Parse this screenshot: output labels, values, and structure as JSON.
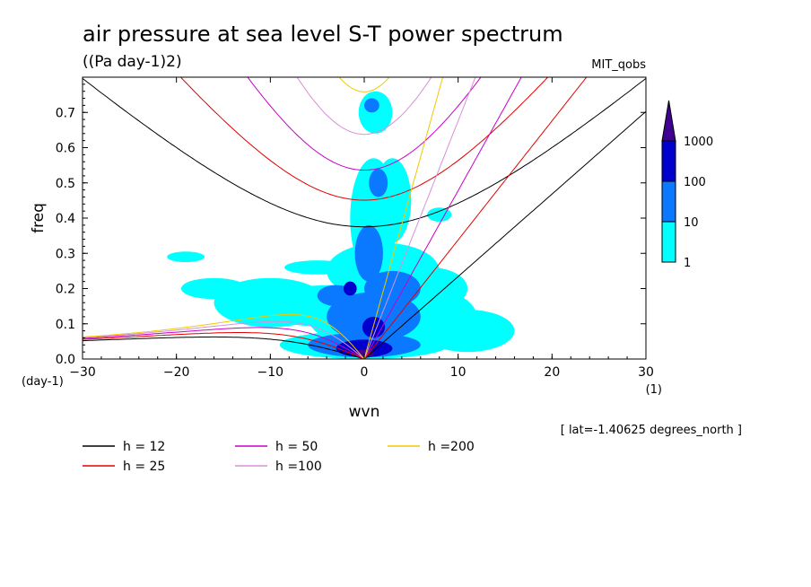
{
  "chart_data": {
    "type": "heatmap",
    "title": "air pressure at sea level S-T power spectrum",
    "units": "((Pa day-1)2)",
    "source": "MIT_qobs",
    "xlabel": "wvn",
    "ylabel": "freq",
    "x_unit": "(1)",
    "y_unit": "(day-1)",
    "xlim": [
      -30,
      30
    ],
    "ylim": [
      0,
      0.8
    ],
    "x_ticks": [
      "−30",
      "−20",
      "−10",
      "0",
      "10",
      "20",
      "30"
    ],
    "y_ticks": [
      "0.0",
      "0.1",
      "0.2",
      "0.3",
      "0.4",
      "0.5",
      "0.6",
      "0.7"
    ],
    "annotation": "[ lat=-1.40625 degrees_north ]",
    "colorbar": {
      "levels": [
        "1",
        "10",
        "100",
        "1000"
      ],
      "colors": [
        "#00ffff",
        "#0a78ff",
        "#0000cc",
        "#400090"
      ]
    },
    "dispersion_curves": [
      {
        "label": "h = 12",
        "h": 12,
        "color": "#000000"
      },
      {
        "label": "h = 25",
        "h": 25,
        "color": "#e00000"
      },
      {
        "label": "h = 50",
        "h": 50,
        "color": "#c800c8"
      },
      {
        "label": "h =100",
        "h": 100,
        "color": "#d890d8"
      },
      {
        "label": "h =200",
        "h": 200,
        "color": "#f0c800"
      }
    ],
    "power_patches": [
      {
        "x": 0,
        "y": 0.04,
        "rx": 9,
        "ry": 0.04,
        "level": 1
      },
      {
        "x": 3,
        "y": 0.12,
        "rx": 9,
        "ry": 0.1,
        "level": 1
      },
      {
        "x": -3,
        "y": 0.15,
        "rx": 9,
        "ry": 0.06,
        "level": 1
      },
      {
        "x": 2,
        "y": 0.25,
        "rx": 6,
        "ry": 0.08,
        "level": 1
      },
      {
        "x": 1,
        "y": 0.4,
        "rx": 2.5,
        "ry": 0.17,
        "level": 1
      },
      {
        "x": 3,
        "y": 0.45,
        "rx": 2,
        "ry": 0.12,
        "level": 1
      },
      {
        "x": 1.2,
        "y": 0.7,
        "rx": 1.8,
        "ry": 0.06,
        "level": 1
      },
      {
        "x": -10,
        "y": 0.16,
        "rx": 6,
        "ry": 0.07,
        "level": 1
      },
      {
        "x": 11,
        "y": 0.08,
        "rx": 5,
        "ry": 0.06,
        "level": 1
      },
      {
        "x": 7,
        "y": 0.2,
        "rx": 4,
        "ry": 0.06,
        "level": 1
      },
      {
        "x": -16,
        "y": 0.2,
        "rx": 3.5,
        "ry": 0.03,
        "level": 1
      },
      {
        "x": -19,
        "y": 0.29,
        "rx": 2,
        "ry": 0.015,
        "level": 1
      },
      {
        "x": -5,
        "y": 0.26,
        "rx": 3.5,
        "ry": 0.02,
        "level": 1
      },
      {
        "x": 8,
        "y": 0.41,
        "rx": 1.3,
        "ry": 0.02,
        "level": 1
      },
      {
        "x": 0,
        "y": 0.04,
        "rx": 6,
        "ry": 0.035,
        "level": 2
      },
      {
        "x": 1,
        "y": 0.12,
        "rx": 5,
        "ry": 0.07,
        "level": 2
      },
      {
        "x": 3,
        "y": 0.2,
        "rx": 3,
        "ry": 0.05,
        "level": 2
      },
      {
        "x": 0.5,
        "y": 0.3,
        "rx": 1.5,
        "ry": 0.08,
        "level": 2
      },
      {
        "x": 1.5,
        "y": 0.5,
        "rx": 1,
        "ry": 0.04,
        "level": 2
      },
      {
        "x": 0.8,
        "y": 0.72,
        "rx": 0.8,
        "ry": 0.02,
        "level": 2
      },
      {
        "x": -3,
        "y": 0.18,
        "rx": 2,
        "ry": 0.03,
        "level": 2
      },
      {
        "x": 0,
        "y": 0.03,
        "rx": 3,
        "ry": 0.025,
        "level": 3
      },
      {
        "x": 1,
        "y": 0.09,
        "rx": 1.2,
        "ry": 0.03,
        "level": 3
      },
      {
        "x": -1.5,
        "y": 0.2,
        "rx": 0.7,
        "ry": 0.02,
        "level": 3
      },
      {
        "x": 0,
        "y": 0.015,
        "rx": 1,
        "ry": 0.012,
        "level": 4
      }
    ],
    "legend_position": "bottom"
  }
}
